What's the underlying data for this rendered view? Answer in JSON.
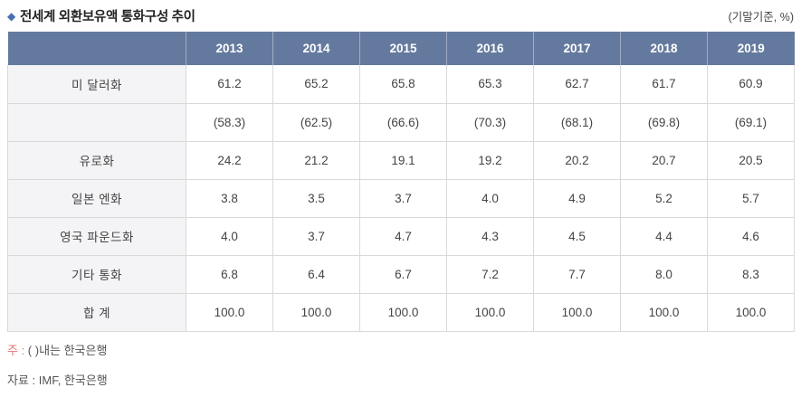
{
  "page": {
    "bullet": "◆",
    "title": "전세계 외환보유액 통화구성 추이",
    "unit_label": "(기말기준, %)"
  },
  "chart_data": {
    "type": "table",
    "title": "전세계 외환보유액 통화구성 추이",
    "unit": "(기말기준, %)",
    "columns": [
      "2013",
      "2014",
      "2015",
      "2016",
      "2017",
      "2018",
      "2019"
    ],
    "rows": [
      {
        "label": "미 달러화",
        "values": [
          "61.2",
          "65.2",
          "65.8",
          "65.3",
          "62.7",
          "61.7",
          "60.9"
        ]
      },
      {
        "label": "",
        "values": [
          "(58.3)",
          "(62.5)",
          "(66.6)",
          "(70.3)",
          "(68.1)",
          "(69.8)",
          "(69.1)"
        ]
      },
      {
        "label": "유로화",
        "values": [
          "24.2",
          "21.2",
          "19.1",
          "19.2",
          "20.2",
          "20.7",
          "20.5"
        ]
      },
      {
        "label": "일본 엔화",
        "values": [
          "3.8",
          "3.5",
          "3.7",
          "4.0",
          "4.9",
          "5.2",
          "5.7"
        ]
      },
      {
        "label": "영국 파운드화",
        "values": [
          "4.0",
          "3.7",
          "4.7",
          "4.3",
          "4.5",
          "4.4",
          "4.6"
        ]
      },
      {
        "label": "기타 통화",
        "values": [
          "6.8",
          "6.4",
          "6.7",
          "7.2",
          "7.7",
          "8.0",
          "8.3"
        ]
      },
      {
        "label": "합 계",
        "values": [
          "100.0",
          "100.0",
          "100.0",
          "100.0",
          "100.0",
          "100.0",
          "100.0"
        ]
      }
    ],
    "notes": {
      "note_label": "주 :",
      "note_body": " ( )내는 한국은행",
      "source": "자료 : IMF, 한국은행"
    }
  },
  "colors": {
    "header_bg": "#64799e",
    "header_text": "#ffffff",
    "label_col_bg": "#f4f4f6",
    "body_text": "#444444",
    "border": "#d9d9d9",
    "bottom_border": "#ababab",
    "title_bullet": "#4a6fb5",
    "note_accent": "#e07575"
  }
}
